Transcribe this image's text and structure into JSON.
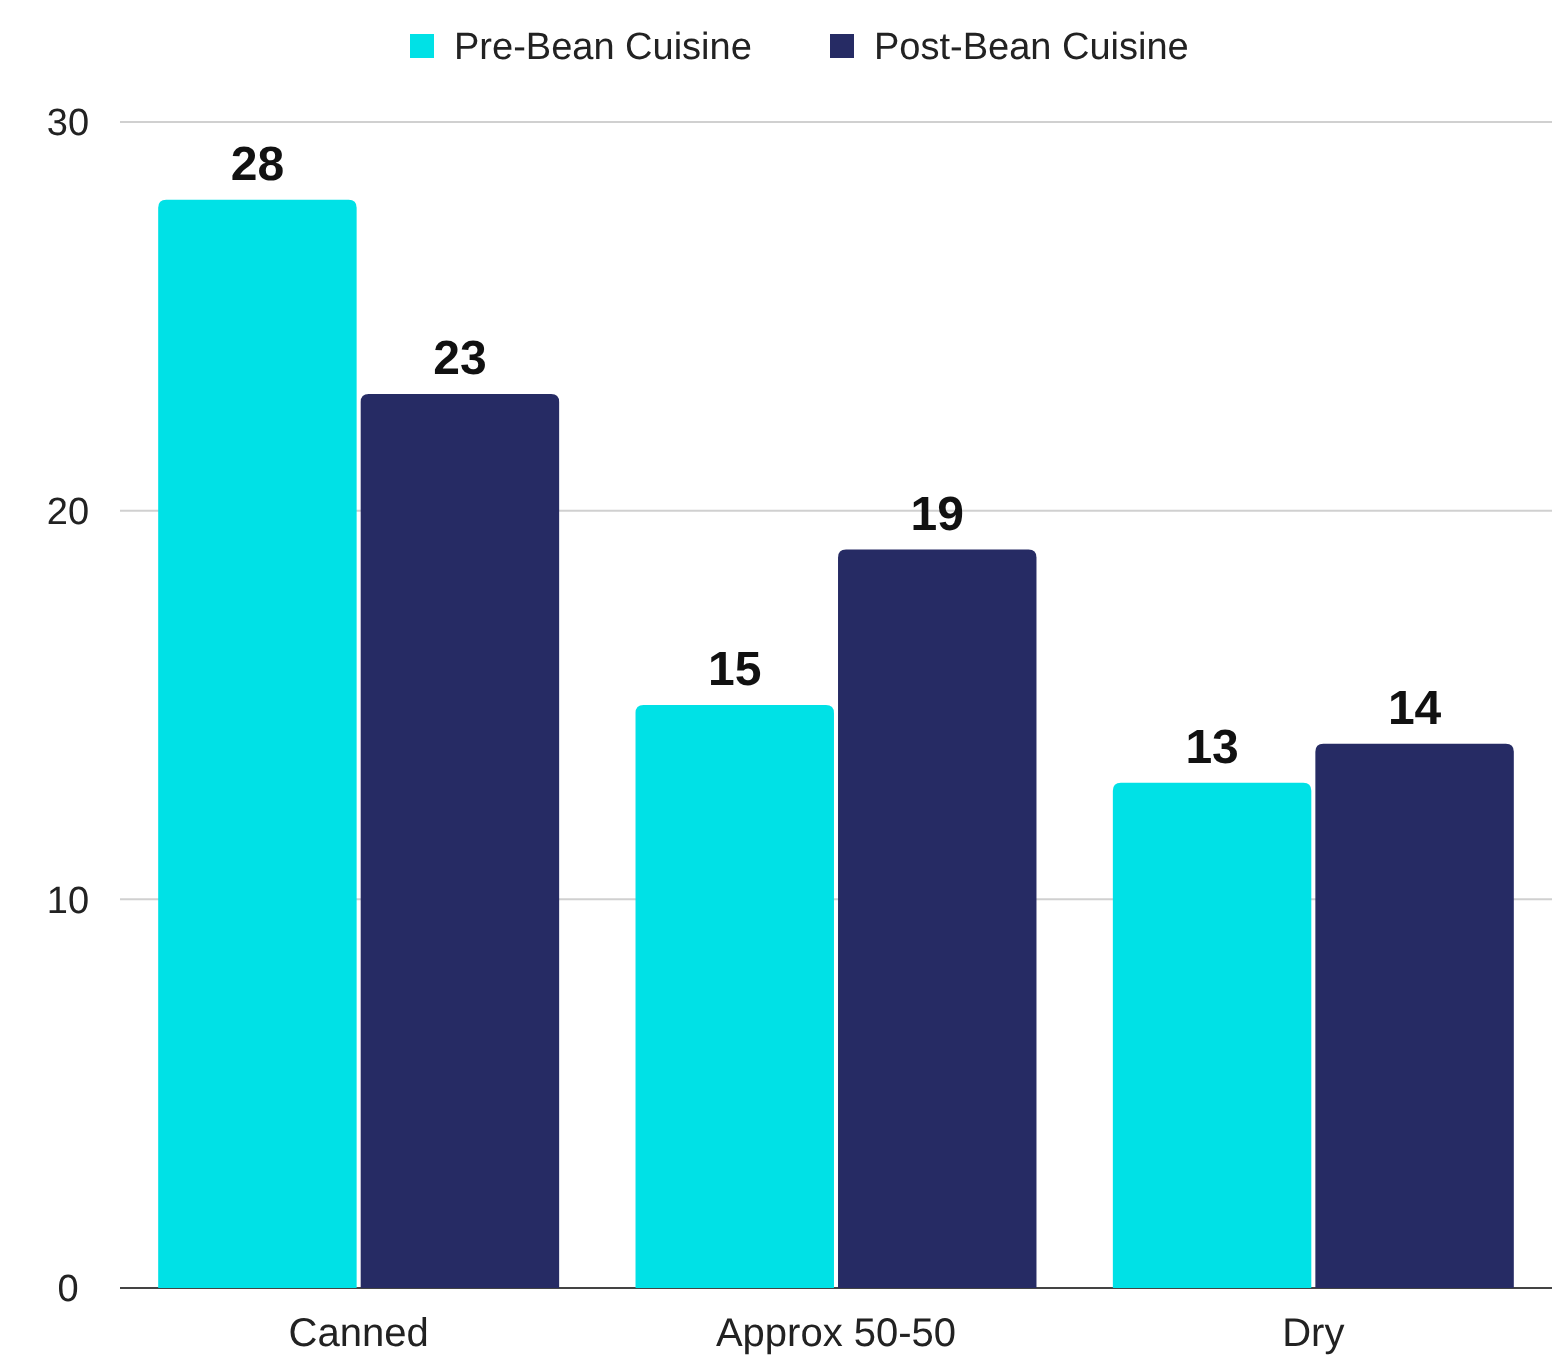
{
  "chart_data": {
    "type": "bar",
    "categories": [
      "Canned",
      "Approx 50-50",
      "Dry"
    ],
    "series": [
      {
        "name": "Pre-Bean Cuisine",
        "color": "#00e1e6",
        "values": [
          28,
          15,
          13
        ]
      },
      {
        "name": "Post-Bean Cuisine",
        "color": "#262b64",
        "values": [
          23,
          19,
          14
        ]
      }
    ],
    "ylim": [
      0,
      30
    ],
    "yticks": [
      0,
      10,
      20,
      30
    ],
    "grid": "y",
    "legend": "top",
    "data_labels": true
  }
}
